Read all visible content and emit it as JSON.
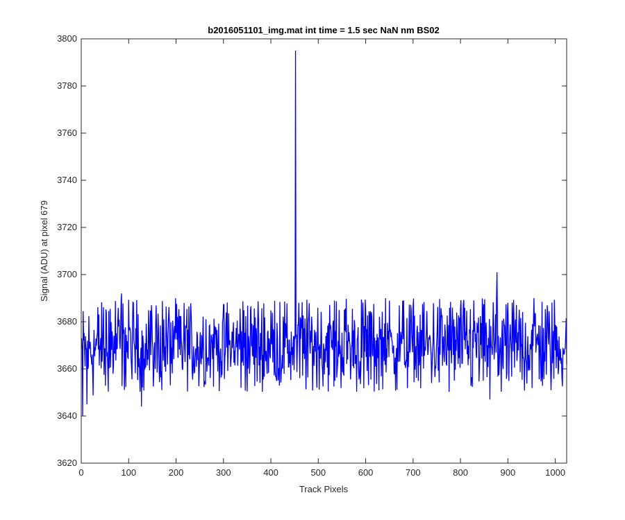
{
  "figure": {
    "background": "#ffffff",
    "axes_color": "#262626"
  },
  "chart_data": {
    "type": "line",
    "title": "b2016051101_img.mat int time = 1.5 sec  NaN nm BS02",
    "xlabel": "Track Pixels",
    "ylabel": "Signal (ADU) at pixel 679",
    "xlim": [
      0,
      1024
    ],
    "ylim": [
      3620,
      3800
    ],
    "xticks": [
      0,
      100,
      200,
      300,
      400,
      500,
      600,
      700,
      800,
      900,
      1000
    ],
    "yticks": [
      3620,
      3640,
      3660,
      3680,
      3700,
      3720,
      3740,
      3760,
      3780,
      3800
    ],
    "grid": false,
    "series": [
      {
        "color": "#0000ff",
        "n_points": 1024,
        "baseline_mean": 3670,
        "noise_range": [
          3650,
          3690
        ],
        "notable_points": [
          {
            "x": 1,
            "y": 3673
          },
          {
            "x": 3,
            "y": 3640
          },
          {
            "x": 12,
            "y": 3645
          },
          {
            "x": 85,
            "y": 3692
          },
          {
            "x": 127,
            "y": 3644
          },
          {
            "x": 452,
            "y": 3795
          },
          {
            "x": 642,
            "y": 3690
          },
          {
            "x": 862,
            "y": 3647
          },
          {
            "x": 877,
            "y": 3701
          },
          {
            "x": 955,
            "y": 3690
          },
          {
            "x": 1024,
            "y": 3662
          }
        ]
      }
    ]
  }
}
